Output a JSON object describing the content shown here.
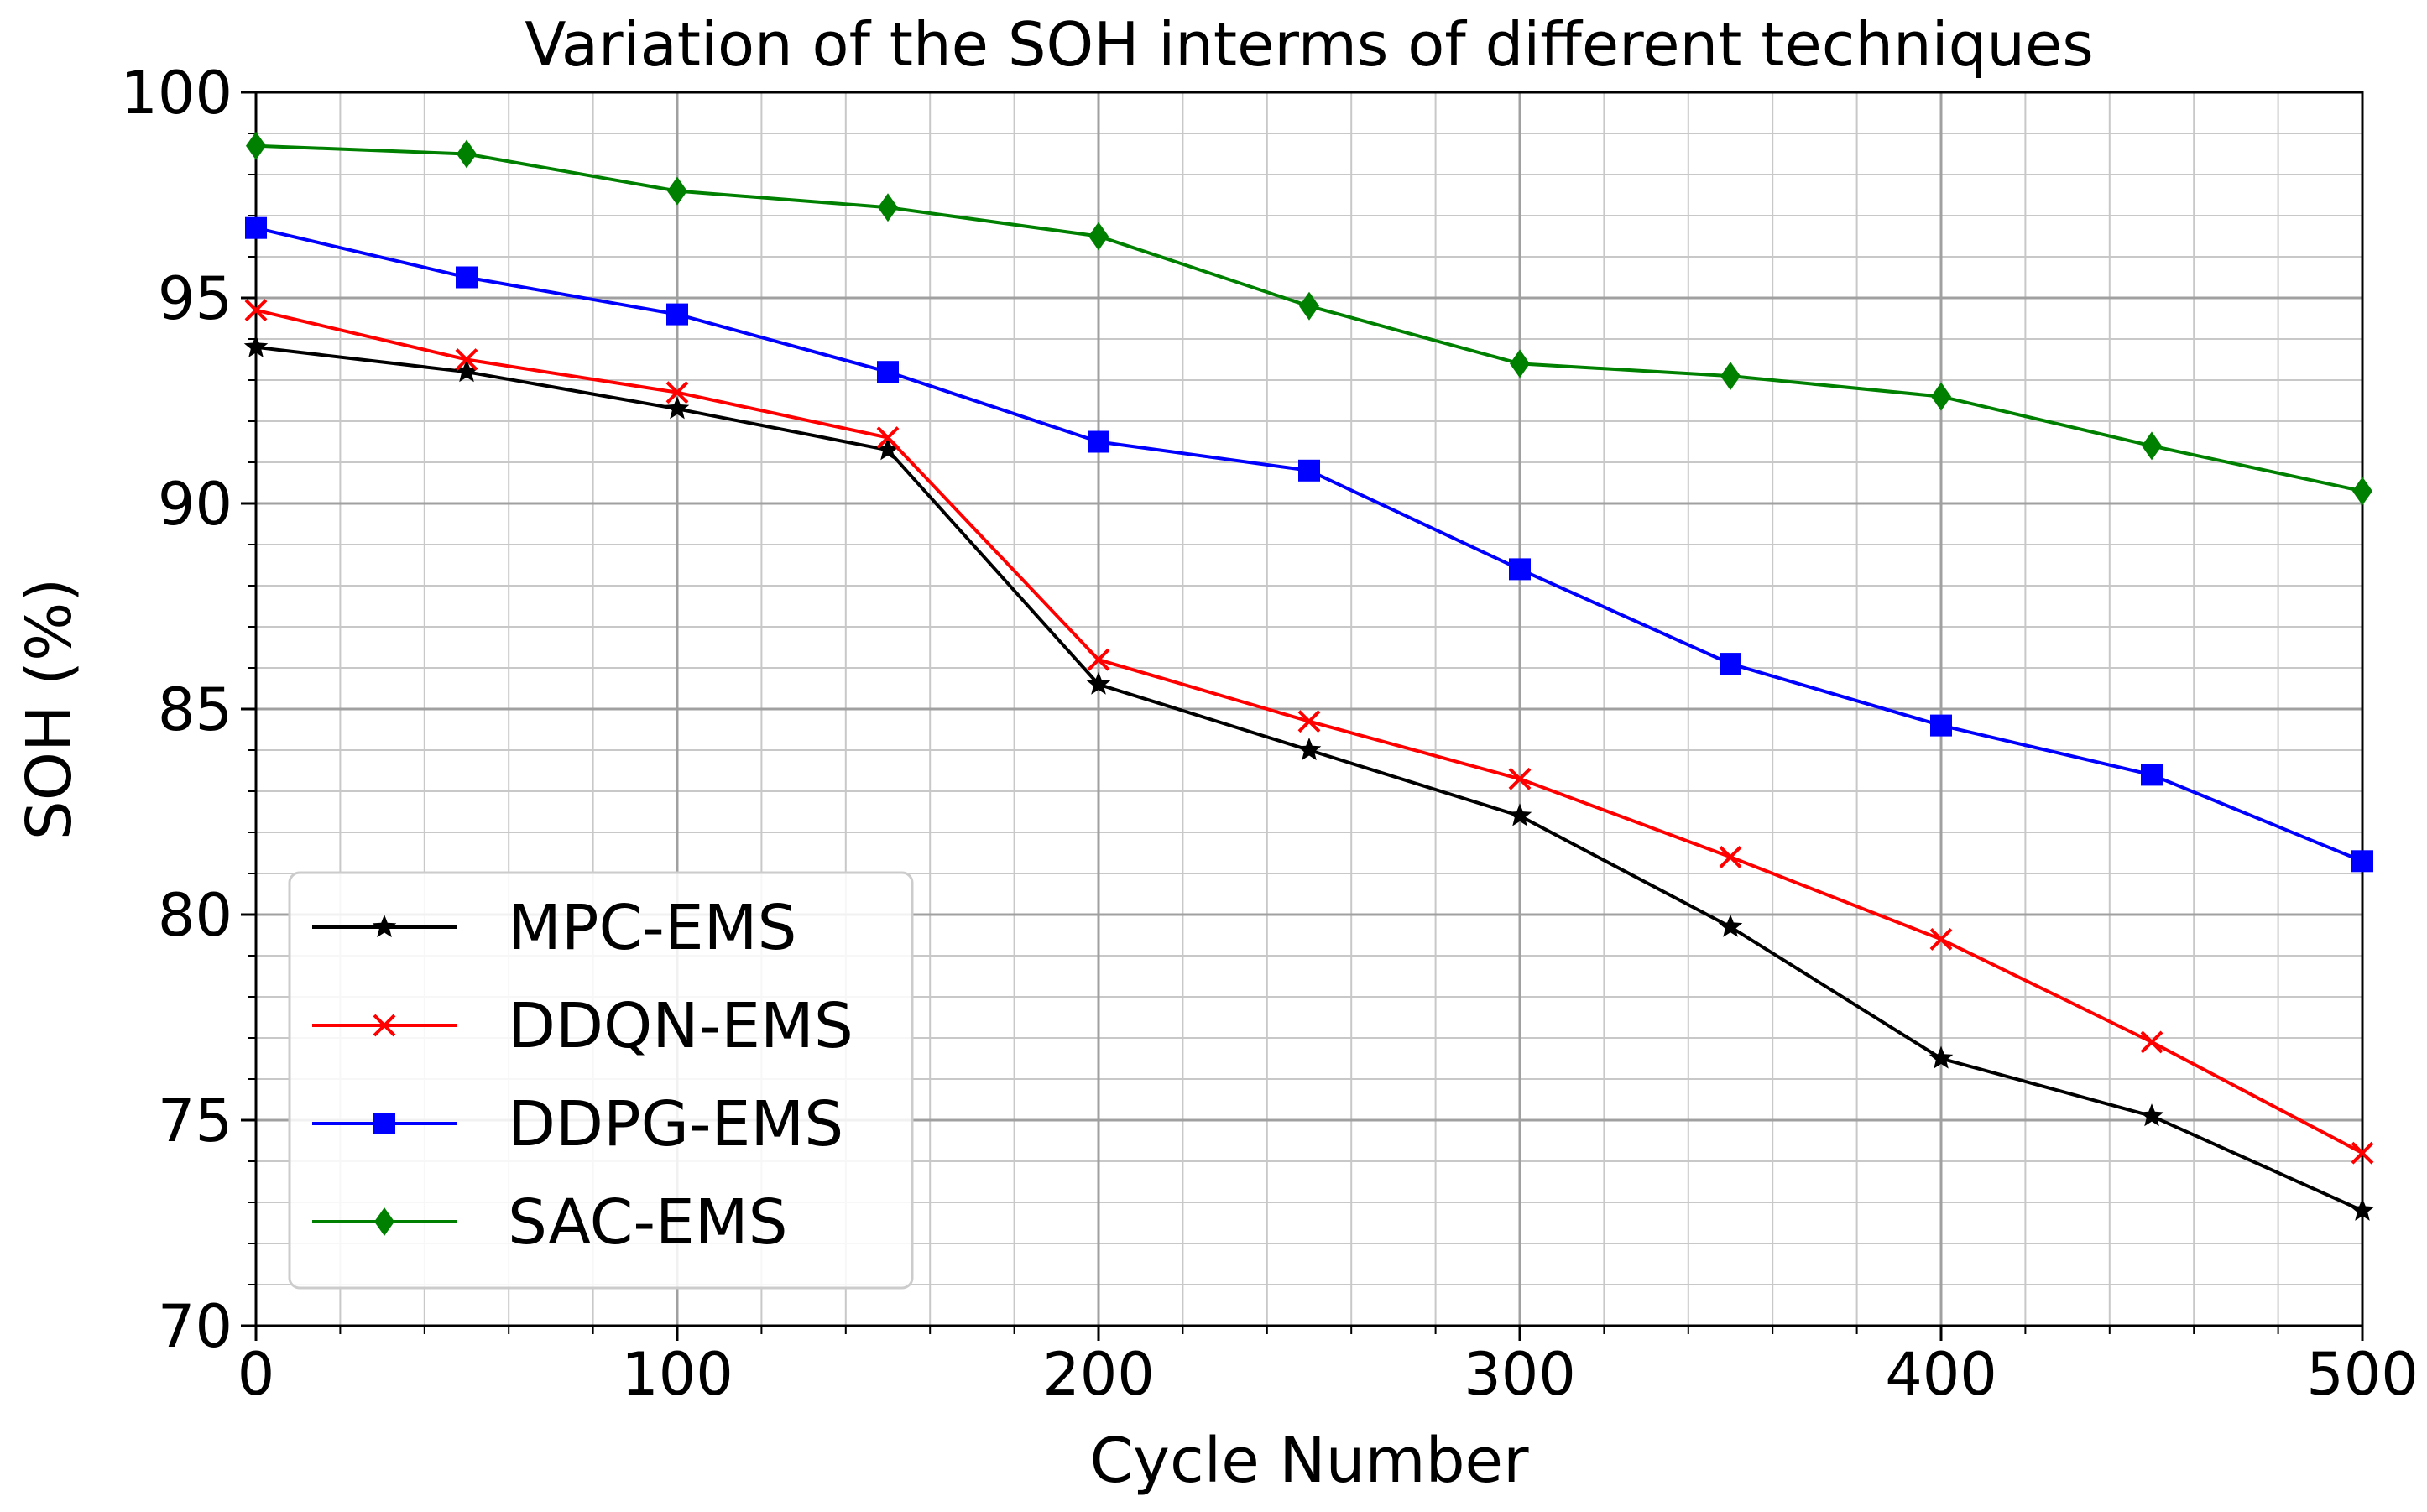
{
  "chart_data": {
    "type": "line",
    "title": "Variation of the SOH interms of different techniques",
    "xlabel": "Cycle Number",
    "ylabel": "SOH (%)",
    "xlim": [
      0,
      500
    ],
    "ylim": [
      70,
      100
    ],
    "xticks": [
      0,
      100,
      200,
      300,
      400,
      500
    ],
    "yticks": [
      70,
      75,
      80,
      85,
      90,
      95,
      100
    ],
    "xtick_labels": [
      "0",
      "100",
      "200",
      "300",
      "400",
      "500"
    ],
    "ytick_labels": [
      "70",
      "75",
      "80",
      "85",
      "90",
      "95",
      "100"
    ],
    "grid": "major and minor",
    "legend_position": "lower-left",
    "x": [
      0,
      50,
      100,
      150,
      200,
      250,
      300,
      350,
      400,
      450,
      500
    ],
    "series": [
      {
        "name": "MPC-EMS",
        "color": "#000000",
        "marker": "star",
        "values": [
          93.8,
          93.2,
          92.3,
          91.3,
          85.6,
          84.0,
          82.4,
          79.7,
          76.5,
          75.1,
          72.8
        ]
      },
      {
        "name": "DDQN-EMS",
        "color": "#ff0000",
        "marker": "x",
        "values": [
          94.7,
          93.5,
          92.7,
          91.6,
          86.2,
          84.7,
          83.3,
          81.4,
          79.4,
          76.9,
          74.2
        ]
      },
      {
        "name": "DDPG-EMS",
        "color": "#0000ff",
        "marker": "square",
        "values": [
          96.7,
          95.5,
          94.6,
          93.2,
          91.5,
          90.8,
          88.4,
          86.1,
          84.6,
          83.4,
          81.3
        ]
      },
      {
        "name": "SAC-EMS",
        "color": "#008000",
        "marker": "diamond",
        "values": [
          98.7,
          98.5,
          97.6,
          97.2,
          96.5,
          94.8,
          93.4,
          93.1,
          92.6,
          91.4,
          90.3
        ]
      }
    ]
  }
}
